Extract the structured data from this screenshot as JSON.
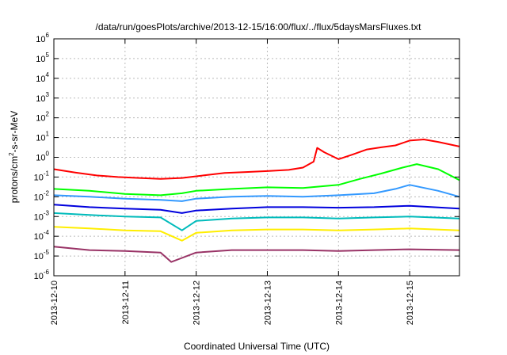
{
  "chart_data": {
    "type": "line",
    "title": "/data/run/goesPlots/archive/2013-12-15/16:00/flux/../flux/5daysMarsFluxes.txt",
    "xlabel": "Coordinated Universal Time (UTC)",
    "ylabel": {
      "before": "protons/cm",
      "sup": "2",
      "after": "-s-sr-MeV"
    },
    "x_ticks": [
      "2013-12-10",
      "2013-12-11",
      "2013-12-12",
      "2013-12-13",
      "2013-12-14",
      "2013-12-15"
    ],
    "xlim_days": [
      0,
      5.7
    ],
    "y_scale": "log",
    "ylim": [
      1e-06,
      1000000.0
    ],
    "y_ticks": [
      {
        "base": "10",
        "exp": "-6"
      },
      {
        "base": "10",
        "exp": "-5"
      },
      {
        "base": "10",
        "exp": "-4"
      },
      {
        "base": "10",
        "exp": "-3"
      },
      {
        "base": "10",
        "exp": "-2"
      },
      {
        "base": "10",
        "exp": "-1"
      },
      {
        "base": "10",
        "exp": "0"
      },
      {
        "base": "10",
        "exp": "1"
      },
      {
        "base": "10",
        "exp": "2"
      },
      {
        "base": "10",
        "exp": "3"
      },
      {
        "base": "10",
        "exp": "4"
      },
      {
        "base": "10",
        "exp": "5"
      },
      {
        "base": "10",
        "exp": "6"
      }
    ],
    "grid": true,
    "series": [
      {
        "color": "#ff0000",
        "points": [
          [
            0,
            0.25
          ],
          [
            0.3,
            0.17
          ],
          [
            0.6,
            0.12
          ],
          [
            0.9,
            0.1
          ],
          [
            1.2,
            0.09
          ],
          [
            1.5,
            0.08
          ],
          [
            1.8,
            0.09
          ],
          [
            2.1,
            0.12
          ],
          [
            2.4,
            0.16
          ],
          [
            2.7,
            0.18
          ],
          [
            3.0,
            0.2
          ],
          [
            3.3,
            0.23
          ],
          [
            3.5,
            0.3
          ],
          [
            3.65,
            0.6
          ],
          [
            3.7,
            3.0
          ],
          [
            3.8,
            1.8
          ],
          [
            4.0,
            0.8
          ],
          [
            4.2,
            1.4
          ],
          [
            4.4,
            2.5
          ],
          [
            4.6,
            3.2
          ],
          [
            4.8,
            4.0
          ],
          [
            5.0,
            7.0
          ],
          [
            5.2,
            8.0
          ],
          [
            5.4,
            6.0
          ],
          [
            5.7,
            3.5
          ]
        ]
      },
      {
        "color": "#00ff00",
        "points": [
          [
            0,
            0.025
          ],
          [
            0.5,
            0.02
          ],
          [
            1.0,
            0.014
          ],
          [
            1.5,
            0.012
          ],
          [
            1.8,
            0.015
          ],
          [
            2.0,
            0.02
          ],
          [
            2.5,
            0.025
          ],
          [
            3.0,
            0.03
          ],
          [
            3.5,
            0.028
          ],
          [
            4.0,
            0.04
          ],
          [
            4.3,
            0.08
          ],
          [
            4.6,
            0.15
          ],
          [
            4.9,
            0.3
          ],
          [
            5.1,
            0.45
          ],
          [
            5.4,
            0.25
          ],
          [
            5.7,
            0.07
          ]
        ]
      },
      {
        "color": "#3399ff",
        "points": [
          [
            0,
            0.012
          ],
          [
            0.5,
            0.01
          ],
          [
            1.0,
            0.008
          ],
          [
            1.5,
            0.007
          ],
          [
            1.8,
            0.006
          ],
          [
            2.0,
            0.008
          ],
          [
            2.5,
            0.01
          ],
          [
            3.0,
            0.011
          ],
          [
            3.5,
            0.01
          ],
          [
            4.0,
            0.012
          ],
          [
            4.5,
            0.015
          ],
          [
            4.8,
            0.025
          ],
          [
            5.0,
            0.04
          ],
          [
            5.4,
            0.02
          ],
          [
            5.7,
            0.01
          ]
        ]
      },
      {
        "color": "#0000dd",
        "points": [
          [
            0,
            0.004
          ],
          [
            0.5,
            0.003
          ],
          [
            1.0,
            0.0025
          ],
          [
            1.5,
            0.0022
          ],
          [
            1.8,
            0.0015
          ],
          [
            2.0,
            0.002
          ],
          [
            2.5,
            0.0025
          ],
          [
            3.0,
            0.003
          ],
          [
            3.5,
            0.003
          ],
          [
            4.0,
            0.0028
          ],
          [
            4.5,
            0.003
          ],
          [
            5.0,
            0.0035
          ],
          [
            5.7,
            0.0025
          ]
        ]
      },
      {
        "color": "#00bbbb",
        "points": [
          [
            0,
            0.0015
          ],
          [
            0.5,
            0.0012
          ],
          [
            1.0,
            0.001
          ],
          [
            1.5,
            0.0009
          ],
          [
            1.8,
            0.0002
          ],
          [
            2.0,
            0.0006
          ],
          [
            2.5,
            0.0008
          ],
          [
            3.0,
            0.0009
          ],
          [
            3.5,
            0.0009
          ],
          [
            4.0,
            0.0008
          ],
          [
            4.5,
            0.0009
          ],
          [
            5.0,
            0.001
          ],
          [
            5.7,
            0.0008
          ]
        ]
      },
      {
        "color": "#ffee00",
        "points": [
          [
            0,
            0.0003
          ],
          [
            0.5,
            0.00025
          ],
          [
            1.0,
            0.0002
          ],
          [
            1.5,
            0.00018
          ],
          [
            1.8,
            6e-05
          ],
          [
            2.0,
            0.00015
          ],
          [
            2.5,
            0.0002
          ],
          [
            3.0,
            0.00022
          ],
          [
            3.5,
            0.00022
          ],
          [
            4.0,
            0.0002
          ],
          [
            4.5,
            0.00022
          ],
          [
            5.0,
            0.00025
          ],
          [
            5.7,
            0.0002
          ]
        ]
      },
      {
        "color": "#993366",
        "points": [
          [
            0,
            3e-05
          ],
          [
            0.5,
            2e-05
          ],
          [
            1.0,
            1.8e-05
          ],
          [
            1.5,
            1.5e-05
          ],
          [
            1.65,
            5e-06
          ],
          [
            1.8,
            8e-06
          ],
          [
            2.0,
            1.5e-05
          ],
          [
            2.5,
            2e-05
          ],
          [
            3.0,
            2e-05
          ],
          [
            3.5,
            2e-05
          ],
          [
            4.0,
            1.8e-05
          ],
          [
            4.5,
            2e-05
          ],
          [
            5.0,
            2.2e-05
          ],
          [
            5.7,
            2e-05
          ]
        ]
      }
    ]
  }
}
